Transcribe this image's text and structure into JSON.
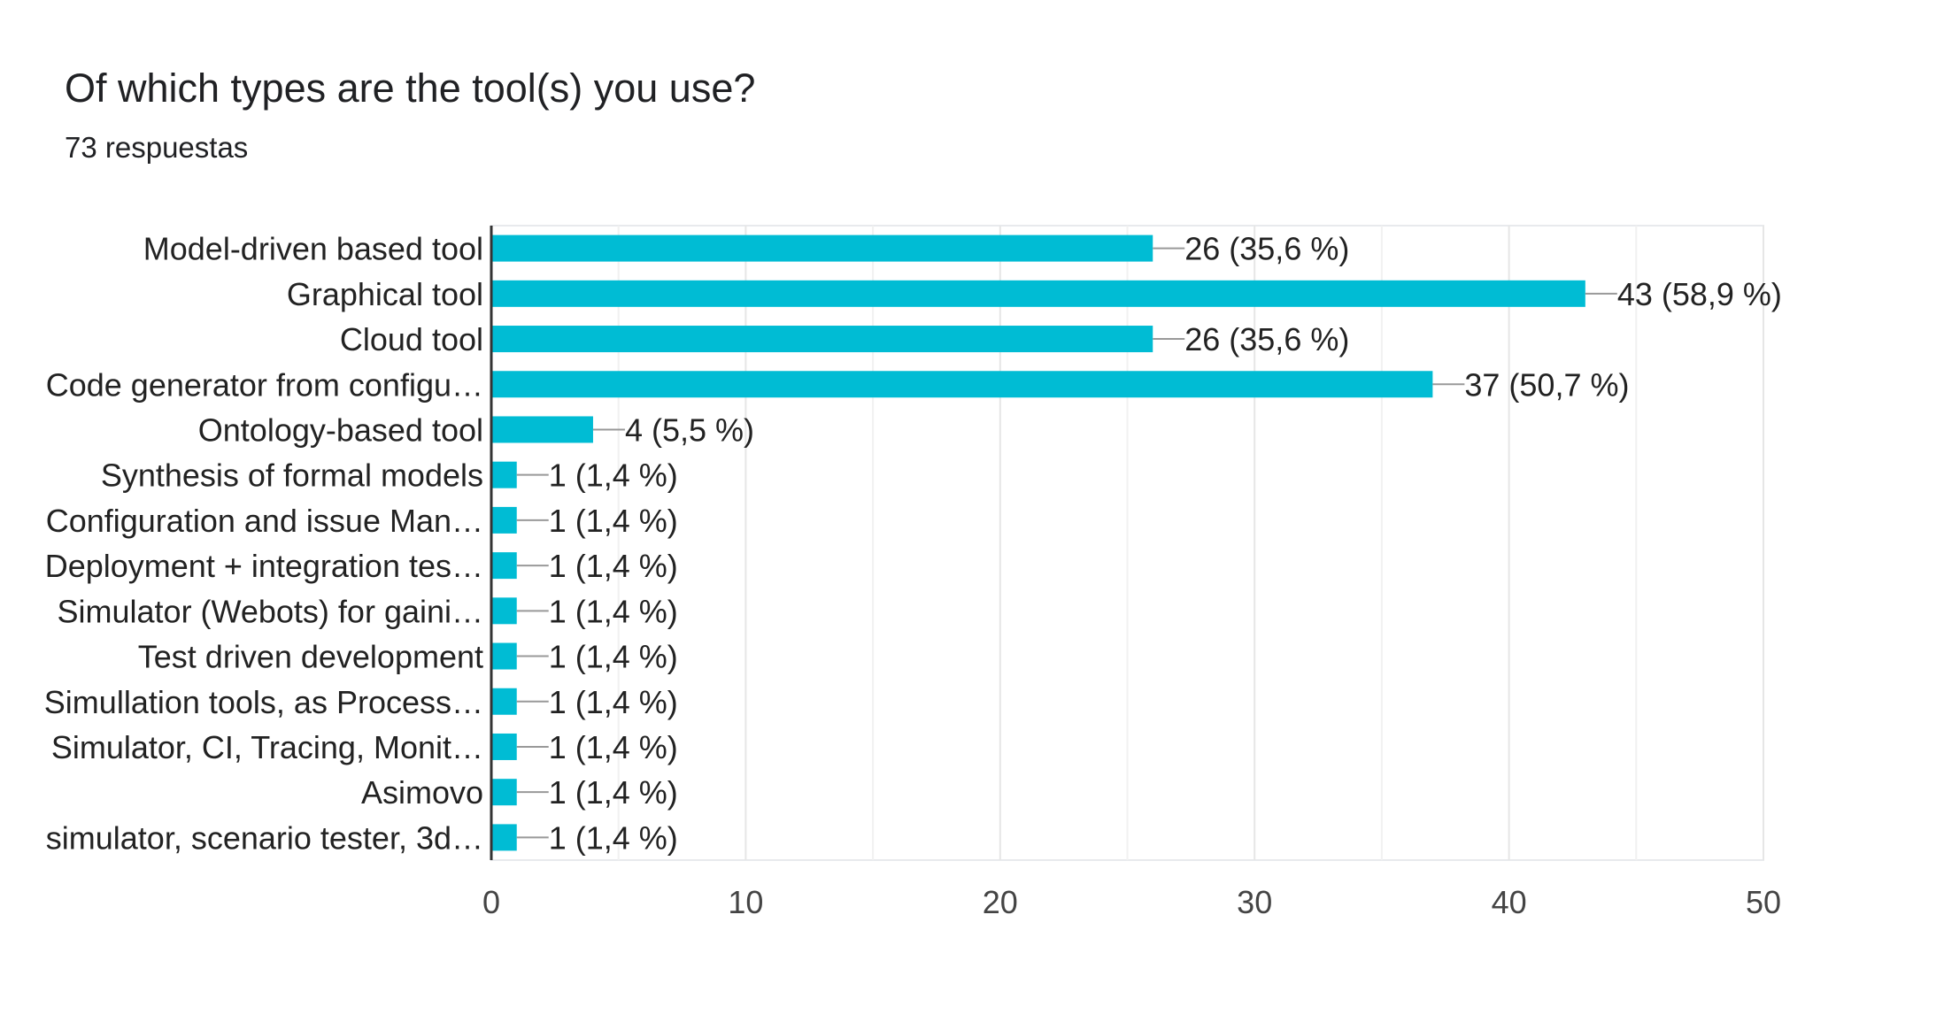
{
  "header": {
    "title": "Of which types are the tool(s) you use?",
    "responses": "73 respuestas"
  },
  "chart_data": {
    "type": "bar",
    "orientation": "horizontal",
    "categories": [
      "Model-driven based tool",
      "Graphical tool",
      "Cloud tool",
      "Code generator from configu…",
      "Ontology-based tool",
      "Synthesis of formal models",
      "Configuration and issue Man…",
      "Deployment + integration tes…",
      "Simulator (Webots) for gaini…",
      "Test driven development",
      "Simullation tools, as Process…",
      "Simulator, CI, Tracing, Monit…",
      "Asimovo",
      "simulator, scenario tester, 3d…"
    ],
    "values": [
      26,
      43,
      26,
      37,
      4,
      1,
      1,
      1,
      1,
      1,
      1,
      1,
      1,
      1
    ],
    "data_labels": [
      "26 (35,6 %)",
      "43 (58,9 %)",
      "26 (35,6 %)",
      "37 (50,7 %)",
      "4 (5,5 %)",
      "1 (1,4 %)",
      "1 (1,4 %)",
      "1 (1,4 %)",
      "1 (1,4 %)",
      "1 (1,4 %)",
      "1 (1,4 %)",
      "1 (1,4 %)",
      "1 (1,4 %)",
      "1 (1,4 %)"
    ],
    "xlim": [
      0,
      50
    ],
    "x_ticks": [
      "0",
      "10",
      "20",
      "30",
      "40",
      "50"
    ],
    "grid": true,
    "bar_color": "#00bcd4"
  }
}
